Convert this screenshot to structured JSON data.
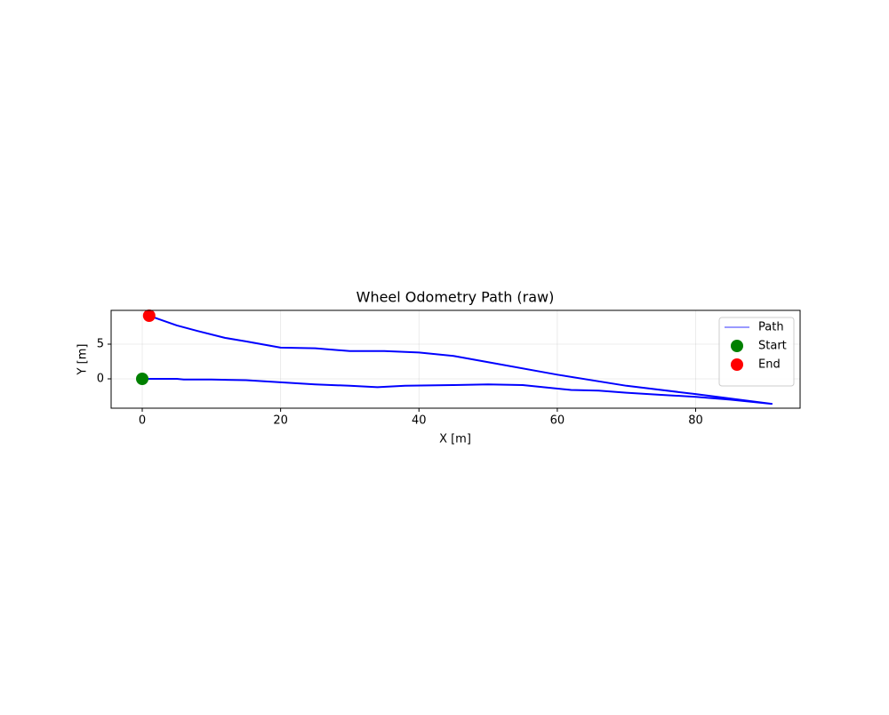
{
  "chart_data": {
    "type": "line",
    "title": "Wheel Odometry Path (raw)",
    "x_label": "X [m]",
    "y_label": "Y [m]",
    "xlim": [
      -4.5,
      95.1
    ],
    "ylim": [
      -4.23,
      9.87
    ],
    "xticks": [
      0,
      20,
      40,
      60,
      80
    ],
    "yticks": [
      0,
      5
    ],
    "grid": true,
    "legend": "upper right",
    "series": [
      {
        "name": "Path",
        "type": "line",
        "color": "#0000ff",
        "x": [
          0,
          5,
          6,
          10,
          15,
          20,
          25,
          30,
          34,
          38,
          45,
          50,
          55,
          58,
          62,
          66,
          70,
          75,
          80,
          85,
          91,
          80,
          70,
          60,
          50,
          45,
          40,
          35,
          30,
          25,
          20,
          15,
          12,
          8,
          5,
          1
        ],
        "values": [
          0,
          0,
          -0.1,
          -0.1,
          -0.2,
          -0.5,
          -0.8,
          -1.0,
          -1.2,
          -1.0,
          -0.9,
          -0.8,
          -0.9,
          -1.2,
          -1.6,
          -1.7,
          -2.0,
          -2.3,
          -2.6,
          -3.0,
          -3.6,
          -2.2,
          -1.0,
          0.6,
          2.4,
          3.3,
          3.8,
          4.0,
          4.0,
          4.4,
          4.5,
          5.4,
          5.9,
          6.9,
          7.7,
          9.1
        ]
      },
      {
        "name": "Start",
        "type": "scatter",
        "color": "#008000",
        "x": [
          0
        ],
        "values": [
          0
        ]
      },
      {
        "name": "End",
        "type": "scatter",
        "color": "#ff0000",
        "x": [
          1
        ],
        "values": [
          9.1
        ]
      }
    ]
  }
}
